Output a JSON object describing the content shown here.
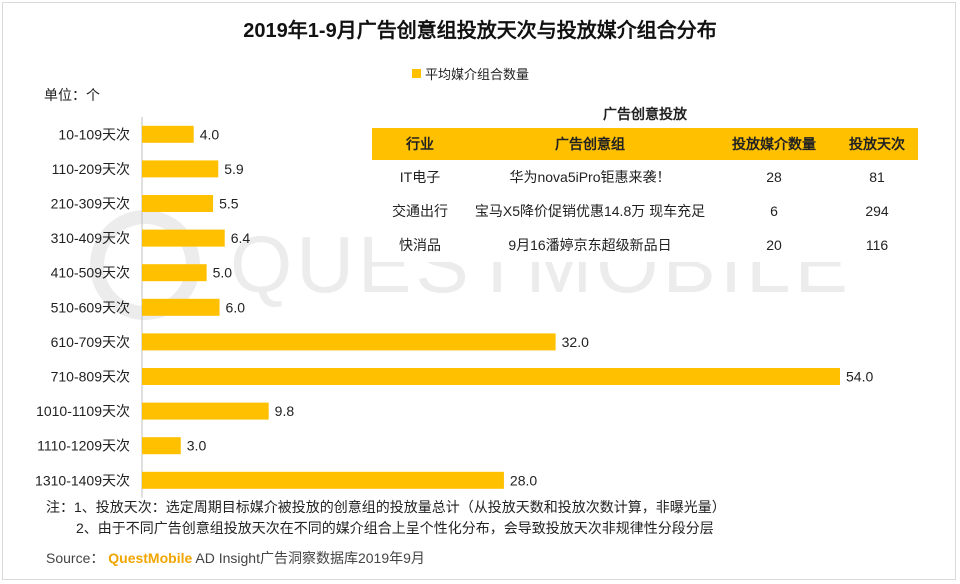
{
  "title": "2019年1-9月广告创意组投放天次与投放媒介组合分布",
  "legend": {
    "label": "平均媒介组合数量"
  },
  "unit_label": "单位：个",
  "colors": {
    "bar": "#ffc000",
    "header": "#ffc000",
    "watermark": "#ececec"
  },
  "chart_data": {
    "type": "bar",
    "orientation": "horizontal",
    "title": "2019年1-9月广告创意组投放天次与投放媒介组合分布",
    "categories": [
      "10-109天次",
      "110-209天次",
      "210-309天次",
      "310-409天次",
      "410-509天次",
      "510-609天次",
      "610-709天次",
      "710-809天次",
      "1010-1109天次",
      "1110-1209天次",
      "1310-1409天次"
    ],
    "series": [
      {
        "name": "平均媒介组合数量",
        "values": [
          4.0,
          5.9,
          5.5,
          6.4,
          5.0,
          6.0,
          32.0,
          54.0,
          9.8,
          3.0,
          28.0
        ]
      }
    ],
    "value_labels": [
      "4.0",
      "5.9",
      "5.5",
      "6.4",
      "5.0",
      "6.0",
      "32.0",
      "54.0",
      "9.8",
      "3.0",
      "28.0"
    ],
    "xlim": [
      0,
      54
    ],
    "grid": false,
    "legend_position": "top-center"
  },
  "table": {
    "title": "广告创意投放",
    "headers": [
      "行业",
      "广告创意组",
      "投放媒介数量",
      "投放天次"
    ],
    "rows": [
      [
        "IT电子",
        "华为nova5iPro钜惠来袭！",
        "28",
        "81"
      ],
      [
        "交通出行",
        "宝马X5降价促销优惠14.8万 现车充足",
        "6",
        "294"
      ],
      [
        "快消品",
        "9月16潘婷京东超级新品日",
        "20",
        "116"
      ]
    ]
  },
  "watermark": {
    "text": "QUESTMOBILE"
  },
  "notes": {
    "line1": "注：1、投放天次：选定周期目标媒介被投放的创意组的投放量总计（从投放天数和投放次数计算，非曝光量）",
    "line2": "2、由于不同广告创意组投放天次在不同的媒介组合上呈个性化分布，会导致投放天次非规律性分段分层"
  },
  "source": {
    "prefix": "Source：",
    "brand": "QuestMobile",
    "suffix": " AD Insight广告洞察数据库2019年9月"
  }
}
